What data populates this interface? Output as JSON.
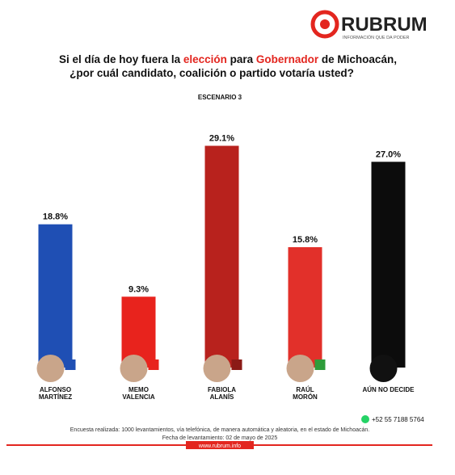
{
  "header": {
    "brand": "RUBRUM",
    "tagline": "INFORMACIÓN QUE DA PODER"
  },
  "chart_data": {
    "type": "bar",
    "title": [
      [
        "Si el día de hoy fuera la ",
        "elección",
        " para ",
        "Gobernador",
        " de Michoacán,"
      ],
      [
        "¿por cuál candidato, coalición o partido votaría usted?"
      ]
    ],
    "subtitle": "ESCENARIO 3",
    "categories": [
      [
        "ALFONSO",
        "MARTÍNEZ"
      ],
      [
        "MEMO",
        "VALENCIA"
      ],
      [
        "FABIOLA",
        "ALANÍS"
      ],
      [
        "RAÚL",
        "MORÓN"
      ],
      [
        "AÚN NO DECIDE"
      ]
    ],
    "values": [
      18.8,
      9.3,
      29.1,
      15.8,
      27.0
    ],
    "value_labels": [
      "18.8%",
      "9.3%",
      "29.1%",
      "15.8%",
      "27.0%"
    ],
    "colors": [
      "#1f4fb4",
      "#e8231d",
      "#b8221d",
      "#e2302a",
      "#0c0c0c"
    ],
    "ylim": [
      0,
      30
    ]
  },
  "footer": {
    "phone": "+52 55 7188 5764",
    "note": "Encuesta realizada: 1000 levantamientos, vía telefónica, de manera automática y aleatoria, en el estado de Michoacán.",
    "date": "Fecha de levantamiento: 02 de mayo de 2025",
    "website": "www.rubrum.info"
  }
}
